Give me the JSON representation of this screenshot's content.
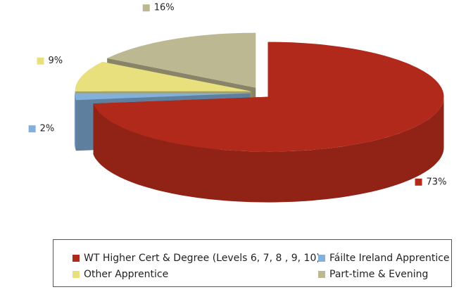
{
  "chart_data": {
    "type": "pie3d",
    "categories": [
      "WT Higher Cert & Degree (Levels 6, 7, 8 , 9, 10)",
      "Fáilte Ireland Apprentice",
      "Other Apprentice",
      "Part-time & Evening"
    ],
    "values": [
      73,
      2,
      9,
      16
    ],
    "value_labels": [
      "73%",
      "2%",
      "9%",
      "16%"
    ],
    "colors": [
      "#b0291b",
      "#83b0da",
      "#e8df7d",
      "#bcb891"
    ],
    "legend": "bottom"
  }
}
